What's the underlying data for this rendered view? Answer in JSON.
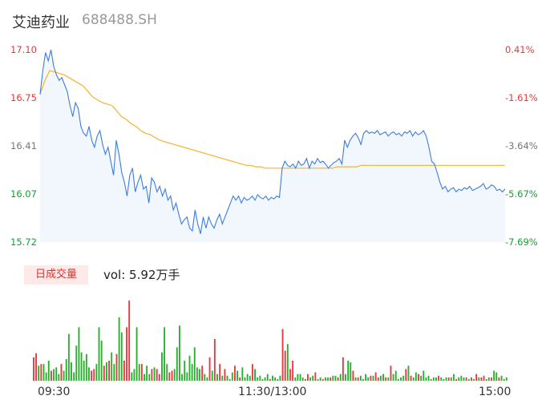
{
  "header": {
    "name": "艾迪药业",
    "code": "688488.SH"
  },
  "chart_data": {
    "type": "line",
    "price_axis": {
      "ticks": [
        "17.10",
        "16.75",
        "16.41",
        "16.07",
        "15.72"
      ],
      "ylim": [
        15.72,
        17.1
      ]
    },
    "pct_axis": {
      "ticks": [
        "0.41%",
        "-1.61%",
        "-3.64%",
        "-5.67%",
        "-7.69%"
      ]
    },
    "x_ticks": [
      "09:30",
      "11:30/13:00",
      "15:00"
    ],
    "series": [
      {
        "values": [
          16.78,
          16.95,
          17.08,
          17.02,
          17.1,
          16.98,
          16.92,
          16.88,
          16.9,
          16.85,
          16.8,
          16.7,
          16.62,
          16.72,
          16.68,
          16.55,
          16.5,
          16.48,
          16.55,
          16.45,
          16.4,
          16.48,
          16.52,
          16.42,
          16.35,
          16.4,
          16.3,
          16.2,
          16.45,
          16.35,
          16.22,
          16.15,
          16.05,
          16.2,
          16.25,
          16.08,
          16.15,
          16.2,
          16.1,
          16.12,
          16.0,
          16.18,
          16.15,
          16.08,
          16.12,
          16.05,
          16.1,
          16.02,
          16.05,
          15.95,
          16.0,
          15.92,
          15.85,
          15.88,
          15.9,
          15.82,
          15.8,
          15.95,
          15.85,
          15.78,
          15.9,
          15.82,
          15.9,
          15.85,
          15.82,
          15.88,
          15.92,
          15.85,
          15.9,
          15.95,
          16.0,
          16.05,
          16.02,
          16.05,
          16.0,
          16.04,
          16.02,
          16.03,
          16.05,
          16.02,
          16.06,
          16.04,
          16.03,
          16.05,
          16.02,
          16.04,
          16.03,
          16.05,
          16.04,
          16.25,
          16.3,
          16.27,
          16.26,
          16.28,
          16.25,
          16.3,
          16.27,
          16.28,
          16.32,
          16.25,
          16.3,
          16.28,
          16.32,
          16.29,
          16.3,
          16.28,
          16.25,
          16.27,
          16.29,
          16.3,
          16.32,
          16.28,
          16.45,
          16.4,
          16.45,
          16.48,
          16.5,
          16.47,
          16.42,
          16.5,
          16.52,
          16.5,
          16.51,
          16.5,
          16.52,
          16.49,
          16.5,
          16.51,
          16.48,
          16.5,
          16.51,
          16.49,
          16.5,
          16.48,
          16.51,
          16.5,
          16.52,
          16.48,
          16.51,
          16.49,
          16.5,
          16.52,
          16.48,
          16.4,
          16.3,
          16.28,
          16.22,
          16.15,
          16.1,
          16.12,
          16.08,
          16.1,
          16.11,
          16.08,
          16.1,
          16.09,
          16.11,
          16.1,
          16.12,
          16.09,
          16.1,
          16.11,
          16.12,
          16.14,
          16.1,
          16.11,
          16.13,
          16.12,
          16.09,
          16.1,
          16.08,
          16.1
        ]
      },
      {
        "values": [
          16.78,
          16.88,
          16.95,
          16.94,
          16.93,
          16.92,
          16.9,
          16.88,
          16.86,
          16.84,
          16.8,
          16.76,
          16.74,
          16.72,
          16.71,
          16.7,
          16.66,
          16.62,
          16.6,
          16.57,
          16.55,
          16.52,
          16.5,
          16.49,
          16.47,
          16.45,
          16.44,
          16.43,
          16.42,
          16.41,
          16.4,
          16.39,
          16.38,
          16.37,
          16.36,
          16.35,
          16.34,
          16.33,
          16.32,
          16.31,
          16.3,
          16.29,
          16.28,
          16.27,
          16.27,
          16.26,
          16.26,
          16.25,
          16.25,
          16.25,
          16.25,
          16.25,
          16.25,
          16.25,
          16.25,
          16.25,
          16.25,
          16.25,
          16.25,
          16.25,
          16.25,
          16.25,
          16.26,
          16.26,
          16.26,
          16.26,
          16.26,
          16.27,
          16.27,
          16.27,
          16.27,
          16.27,
          16.27,
          16.27,
          16.27,
          16.27,
          16.27,
          16.27,
          16.27,
          16.27,
          16.27,
          16.27,
          16.27,
          16.27,
          16.27,
          16.27,
          16.27,
          16.27,
          16.27,
          16.27,
          16.27,
          16.27,
          16.27,
          16.27,
          16.27,
          16.27,
          16.27,
          16.27
        ]
      }
    ],
    "volume": {
      "label": "日成交量",
      "text": "vol: 5.92万手",
      "bars": [
        [
          28,
          1
        ],
        [
          33,
          1
        ],
        [
          18,
          0
        ],
        [
          20,
          1
        ],
        [
          20,
          0
        ],
        [
          10,
          0
        ],
        [
          24,
          0
        ],
        [
          12,
          1
        ],
        [
          14,
          0
        ],
        [
          16,
          0
        ],
        [
          8,
          0
        ],
        [
          20,
          1
        ],
        [
          12,
          0
        ],
        [
          26,
          0
        ],
        [
          56,
          0
        ],
        [
          22,
          0
        ],
        [
          10,
          0
        ],
        [
          42,
          0
        ],
        [
          64,
          0
        ],
        [
          34,
          0
        ],
        [
          24,
          0
        ],
        [
          32,
          0
        ],
        [
          16,
          0
        ],
        [
          12,
          1
        ],
        [
          14,
          1
        ],
        [
          20,
          0
        ],
        [
          64,
          0
        ],
        [
          48,
          0
        ],
        [
          18,
          1
        ],
        [
          22,
          0
        ],
        [
          24,
          1
        ],
        [
          34,
          0
        ],
        [
          20,
          0
        ],
        [
          32,
          1
        ],
        [
          76,
          0
        ],
        [
          58,
          0
        ],
        [
          24,
          1
        ],
        [
          64,
          1
        ],
        [
          96,
          1
        ],
        [
          10,
          0
        ],
        [
          14,
          0
        ],
        [
          64,
          0
        ],
        [
          20,
          0
        ],
        [
          20,
          1
        ],
        [
          8,
          0
        ],
        [
          18,
          0
        ],
        [
          8,
          0
        ],
        [
          14,
          1
        ],
        [
          16,
          0
        ],
        [
          14,
          1
        ],
        [
          8,
          1
        ],
        [
          34,
          0
        ],
        [
          64,
          0
        ],
        [
          20,
          0
        ],
        [
          10,
          1
        ],
        [
          12,
          1
        ],
        [
          14,
          0
        ],
        [
          40,
          0
        ],
        [
          66,
          0
        ],
        [
          8,
          0
        ],
        [
          24,
          0
        ],
        [
          10,
          0
        ],
        [
          30,
          0
        ],
        [
          20,
          0
        ],
        [
          40,
          0
        ],
        [
          16,
          0
        ],
        [
          14,
          0
        ],
        [
          18,
          1
        ],
        [
          8,
          0
        ],
        [
          4,
          0
        ],
        [
          28,
          1
        ],
        [
          12,
          0
        ],
        [
          50,
          1
        ],
        [
          8,
          0
        ],
        [
          20,
          1
        ],
        [
          6,
          0
        ],
        [
          14,
          1
        ],
        [
          6,
          0
        ],
        [
          2,
          0
        ],
        [
          10,
          0
        ],
        [
          18,
          1
        ],
        [
          12,
          0
        ],
        [
          4,
          1
        ],
        [
          16,
          0
        ],
        [
          4,
          0
        ],
        [
          8,
          0
        ],
        [
          6,
          0
        ],
        [
          20,
          1
        ],
        [
          14,
          0
        ],
        [
          4,
          0
        ],
        [
          6,
          0
        ],
        [
          2,
          0
        ],
        [
          4,
          0
        ],
        [
          8,
          0
        ],
        [
          2,
          1
        ],
        [
          6,
          0
        ],
        [
          4,
          0
        ],
        [
          2,
          0
        ],
        [
          6,
          0
        ],
        [
          62,
          1
        ],
        [
          36,
          1
        ],
        [
          44,
          0
        ],
        [
          14,
          1
        ],
        [
          24,
          1
        ],
        [
          4,
          0
        ],
        [
          8,
          0
        ],
        [
          8,
          0
        ],
        [
          4,
          0
        ],
        [
          2,
          1
        ],
        [
          8,
          1
        ],
        [
          4,
          0
        ],
        [
          6,
          0
        ],
        [
          10,
          1
        ],
        [
          2,
          0
        ],
        [
          4,
          0
        ],
        [
          2,
          1
        ],
        [
          4,
          0
        ],
        [
          4,
          0
        ],
        [
          4,
          1
        ],
        [
          6,
          0
        ],
        [
          6,
          0
        ],
        [
          4,
          1
        ],
        [
          8,
          0
        ],
        [
          28,
          1
        ],
        [
          8,
          0
        ],
        [
          24,
          0
        ],
        [
          22,
          0
        ],
        [
          12,
          1
        ],
        [
          4,
          0
        ],
        [
          4,
          1
        ],
        [
          6,
          0
        ],
        [
          2,
          0
        ],
        [
          8,
          0
        ],
        [
          4,
          0
        ],
        [
          6,
          1
        ],
        [
          6,
          0
        ],
        [
          10,
          1
        ],
        [
          4,
          1
        ],
        [
          6,
          0
        ],
        [
          8,
          0
        ],
        [
          4,
          1
        ],
        [
          4,
          0
        ],
        [
          18,
          1
        ],
        [
          8,
          0
        ],
        [
          12,
          0
        ],
        [
          2,
          0
        ],
        [
          4,
          0
        ],
        [
          6,
          0
        ],
        [
          14,
          1
        ],
        [
          18,
          0
        ],
        [
          6,
          1
        ],
        [
          4,
          0
        ],
        [
          10,
          0
        ],
        [
          8,
          1
        ],
        [
          6,
          0
        ],
        [
          12,
          0
        ],
        [
          4,
          0
        ],
        [
          6,
          0
        ],
        [
          2,
          0
        ],
        [
          4,
          0
        ],
        [
          4,
          0
        ],
        [
          6,
          1
        ],
        [
          4,
          0
        ],
        [
          2,
          0
        ],
        [
          4,
          0
        ],
        [
          4,
          1
        ],
        [
          4,
          0
        ],
        [
          8,
          0
        ],
        [
          2,
          1
        ],
        [
          4,
          0
        ],
        [
          6,
          0
        ],
        [
          4,
          0
        ],
        [
          4,
          1
        ],
        [
          2,
          0
        ],
        [
          4,
          1
        ],
        [
          2,
          0
        ],
        [
          8,
          1
        ],
        [
          4,
          0
        ],
        [
          4,
          1
        ],
        [
          6,
          1
        ],
        [
          2,
          0
        ],
        [
          4,
          0
        ],
        [
          4,
          1
        ],
        [
          12,
          0
        ],
        [
          10,
          0
        ],
        [
          4,
          1
        ],
        [
          6,
          0
        ],
        [
          2,
          0
        ],
        [
          4,
          0
        ]
      ],
      "colors": {
        "up": "#e5393f",
        "down": "#28b02d"
      }
    },
    "colors": {
      "price": "#3b7ddd",
      "avg": "#f5b22e",
      "area": "#f2f6fd",
      "up": "#e33b3b",
      "down": "#1a9b33"
    }
  }
}
